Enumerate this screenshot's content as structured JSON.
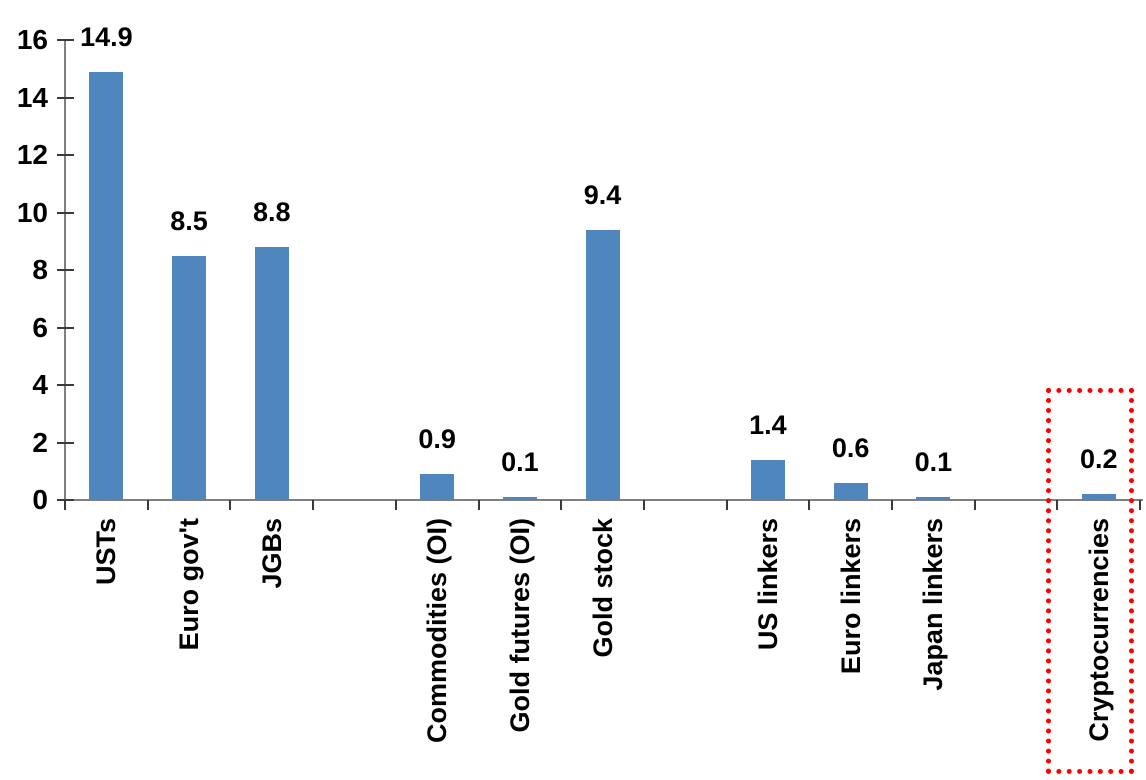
{
  "chart_data": {
    "type": "bar",
    "title": "",
    "xlabel": "",
    "ylabel": "",
    "categories": [
      "USTs",
      "Euro gov't",
      "JGBs",
      "Commodities (OI)",
      "Gold futures (OI)",
      "Gold stock",
      "US linkers",
      "Euro linkers",
      "Japan linkers",
      "Cryptocurrencies"
    ],
    "values": [
      14.9,
      8.5,
      8.8,
      0.9,
      0.1,
      9.4,
      1.4,
      0.6,
      0.1,
      0.2
    ],
    "slots": [
      {
        "label": "USTs",
        "value": 14.9
      },
      {
        "label": "Euro gov't",
        "value": 8.5
      },
      {
        "label": "JGBs",
        "value": 8.8
      },
      {
        "label": "",
        "value": null
      },
      {
        "label": "Commodities (OI)",
        "value": 0.9
      },
      {
        "label": "Gold futures (OI)",
        "value": 0.1
      },
      {
        "label": "Gold stock",
        "value": 9.4
      },
      {
        "label": "",
        "value": null
      },
      {
        "label": "US linkers",
        "value": 1.4
      },
      {
        "label": "Euro linkers",
        "value": 0.6
      },
      {
        "label": "Japan linkers",
        "value": 0.1
      },
      {
        "label": "",
        "value": null
      },
      {
        "label": "Cryptocurrencies",
        "value": 0.2
      }
    ],
    "data_labels": true,
    "data_label_decimals": 1,
    "ylim": [
      0,
      16
    ],
    "yticks": [
      0,
      2,
      4,
      6,
      8,
      10,
      12,
      14,
      16
    ],
    "grid": false,
    "legend": false,
    "category_label_rotation_deg": -90,
    "bar_color": "#4e86bd",
    "axis_line_color": "#7f7f7f",
    "tick_color": "#3a3a3a",
    "text_color": "#000000",
    "highlight": {
      "target": "Cryptocurrencies",
      "shape": "dotted-rectangle",
      "color": "#ff0000"
    }
  }
}
